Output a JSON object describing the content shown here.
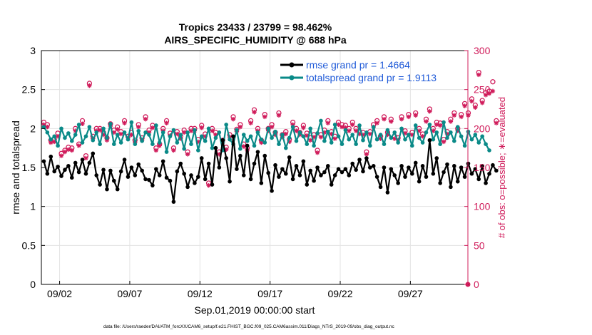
{
  "colors": {
    "rmse": "#000000",
    "totalspread": "#0a8a88",
    "obs": "#d01c5b",
    "legend_text": "#1f5ad8"
  },
  "chart_data": {
    "type": "line",
    "title": "Tropics 23433 / 23799 = 98.462%",
    "subtitle": "AIRS_SPECIFIC_HUMIDITY @ 688 hPa",
    "xlabel": "Sep.01,2019 00:00:00 start",
    "ylabel": "rmse and totalspread",
    "ylabel_right": "# of obs: o=possible; ∗=evaluated",
    "footnote": "data file: /Users/raeder/DAI/ATM_forcXX/CAM6_setup/f.e21.FHIST_BGC.f09_025.CAM6assim.011/Diags_NTrS_2019-09/obs_diag_output.nc",
    "xlim": [
      0.7,
      31.1
    ],
    "ylim": [
      0,
      3
    ],
    "ylim_right": [
      0,
      300
    ],
    "x_ticks": [
      2,
      7,
      12,
      17,
      22,
      27
    ],
    "x_tick_labels": [
      "09/02",
      "09/07",
      "09/12",
      "09/17",
      "09/22",
      "09/27"
    ],
    "y_ticks": [
      0,
      0.5,
      1,
      1.5,
      2,
      2.5,
      3
    ],
    "y_tick_labels": [
      "0",
      "0.5",
      "1",
      "1.5",
      "2",
      "2.5",
      "3"
    ],
    "y_ticks_right": [
      0,
      50,
      100,
      150,
      200,
      250,
      300
    ],
    "y_tick_labels_right": [
      "0",
      "50",
      "100",
      "150",
      "200",
      "250",
      "300"
    ],
    "grid": true,
    "legend_position": "top-right",
    "legend": [
      "rmse grand pr = 1.4664",
      "totalspread grand pr = 1.9113"
    ],
    "x_start": 0.875,
    "x_step": 0.25,
    "series": [
      {
        "name": "rmse",
        "axis": "left",
        "values": [
          1.58,
          1.42,
          1.64,
          1.45,
          1.51,
          1.39,
          1.47,
          1.52,
          1.37,
          1.56,
          1.44,
          1.6,
          1.42,
          1.56,
          1.68,
          1.4,
          1.28,
          1.47,
          1.22,
          1.46,
          1.33,
          1.22,
          1.45,
          1.6,
          1.38,
          1.5,
          1.4,
          1.54,
          1.46,
          1.35,
          1.34,
          1.27,
          1.48,
          1.4,
          1.58,
          1.37,
          1.33,
          1.06,
          1.45,
          1.55,
          1.42,
          1.25,
          1.4,
          1.3,
          1.38,
          1.62,
          1.35,
          1.55,
          1.28,
          1.75,
          1.5,
          1.85,
          1.62,
          1.32,
          1.9,
          1.48,
          1.65,
          1.4,
          1.78,
          1.35,
          1.55,
          1.7,
          1.3,
          1.65,
          1.43,
          1.2,
          1.53,
          1.38,
          1.48,
          1.42,
          1.63,
          1.35,
          1.52,
          1.4,
          1.58,
          1.28,
          1.46,
          1.33,
          1.5,
          1.4,
          1.44,
          1.52,
          1.28,
          1.4,
          1.48,
          1.44,
          1.48,
          1.4,
          1.55,
          1.47,
          1.6,
          1.45,
          1.62,
          1.5,
          1.52,
          1.38,
          1.25,
          1.5,
          1.18,
          1.48,
          1.4,
          1.3,
          1.52,
          1.38,
          1.5,
          1.42,
          1.56,
          1.32,
          1.52,
          1.38,
          1.85,
          1.42,
          1.62,
          1.3,
          1.44,
          1.54,
          1.25,
          1.52,
          1.32,
          1.5,
          1.38,
          1.55,
          1.42,
          1.48,
          1.35,
          1.52,
          1.3,
          1.42,
          1.53,
          1.46
        ]
      },
      {
        "name": "totalspread",
        "axis": "left",
        "values": [
          2.02,
          1.95,
          1.86,
          1.9,
          1.78,
          2.0,
          1.88,
          1.94,
          1.84,
          1.92,
          2.05,
          1.82,
          1.9,
          2.02,
          1.85,
          1.95,
          1.8,
          2.0,
          1.88,
          2.06,
          1.8,
          1.92,
          1.82,
          1.95,
          1.86,
          2.08,
          1.8,
          1.97,
          1.84,
          1.95,
          1.92,
          1.8,
          2.04,
          1.82,
          1.95,
          1.7,
          1.9,
          1.98,
          1.82,
          1.92,
          1.74,
          1.95,
          1.8,
          1.98,
          1.72,
          1.9,
          1.84,
          2.0,
          1.75,
          1.88,
          1.95,
          1.72,
          2.05,
          1.86,
          1.8,
          1.98,
          1.74,
          1.92,
          1.84,
          1.9,
          1.78,
          1.95,
          1.86,
          1.82,
          2.0,
          1.88,
          1.96,
          1.8,
          1.92,
          1.75,
          1.88,
          2.02,
          1.84,
          1.95,
          1.9,
          1.8,
          2.0,
          1.78,
          1.94,
          2.1,
          1.84,
          1.96,
          1.82,
          2.05,
          1.9,
          1.8,
          1.98,
          1.86,
          1.92,
          1.8,
          2.04,
          1.85,
          1.95,
          1.78,
          2.02,
          1.86,
          1.92,
          1.8,
          1.98,
          1.88,
          1.95,
          1.82,
          2.0,
          1.86,
          1.92,
          1.78,
          2.04,
          1.88,
          1.82,
          1.95,
          2.05,
          1.86,
          1.95,
          1.8,
          2.08,
          1.88,
          1.95,
          1.84,
          2.02,
          1.9,
          1.78,
          1.96,
          1.86,
          1.92,
          1.82,
          1.9,
          1.8,
          1.72
        ]
      },
      {
        "name": "obs_possible",
        "axis": "right",
        "values": [
          208,
          205,
          185,
          186,
          194,
          168,
          172,
          176,
          175,
          200,
          180,
          210,
          165,
          258,
          190,
          200,
          200,
          195,
          188,
          206,
          198,
          202,
          196,
          210,
          190,
          195,
          185,
          205,
          188,
          215,
          198,
          204,
          175,
          180,
          200,
          210,
          194,
          175,
          196,
          190,
          198,
          170,
          200,
          200,
          186,
          204,
          193,
          130,
          200,
          195,
          170,
          185,
          176,
          192,
          215,
          199,
          205,
          180,
          175,
          210,
          224,
          200,
          185,
          218,
          200,
          205,
          195,
          220,
          192,
          196,
          186,
          208,
          200,
          195,
          204,
          194,
          188,
          192,
          172,
          192,
          198,
          210,
          196,
          190,
          208,
          205,
          204,
          200,
          208,
          200,
          196,
          195,
          170,
          196,
          205,
          210,
          190,
          215,
          195,
          212,
          190,
          188,
          215,
          197,
          218,
          195,
          220,
          200,
          193,
          212,
          225,
          200,
          208,
          207,
          186,
          196,
          212,
          220,
          200,
          218,
          232,
          220,
          238,
          230,
          272,
          236,
          246,
          248,
          260,
          210
        ]
      },
      {
        "name": "obs_evaluated",
        "axis": "right",
        "values": [
          205,
          202,
          182,
          183,
          190,
          165,
          170,
          173,
          172,
          197,
          178,
          206,
          162,
          255,
          187,
          197,
          198,
          192,
          185,
          203,
          195,
          199,
          193,
          207,
          188,
          192,
          182,
          202,
          185,
          212,
          195,
          201,
          172,
          178,
          197,
          207,
          191,
          172,
          193,
          187,
          195,
          167,
          197,
          197,
          183,
          201,
          190,
          127,
          197,
          192,
          167,
          182,
          173,
          189,
          212,
          196,
          202,
          177,
          172,
          207,
          221,
          197,
          182,
          215,
          197,
          202,
          192,
          217,
          189,
          193,
          183,
          205,
          197,
          192,
          201,
          191,
          185,
          189,
          169,
          189,
          195,
          207,
          193,
          187,
          205,
          202,
          201,
          197,
          205,
          197,
          193,
          192,
          167,
          193,
          202,
          207,
          187,
          212,
          192,
          209,
          187,
          185,
          212,
          194,
          215,
          192,
          217,
          197,
          190,
          209,
          222,
          197,
          205,
          204,
          183,
          193,
          209,
          217,
          197,
          215,
          229,
          217,
          235,
          227,
          269,
          233,
          243,
          245,
          248,
          207
        ]
      }
    ]
  }
}
